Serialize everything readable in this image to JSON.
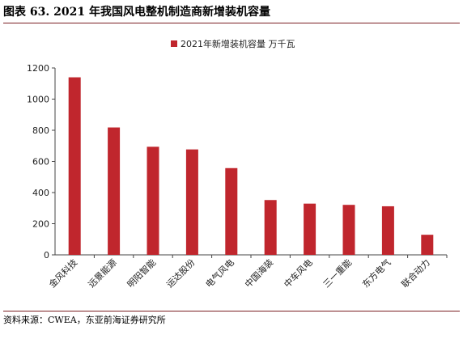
{
  "figure": {
    "title": "图表 63. 2021 年我国风电整机制造商新增装机容量",
    "source": "资料来源：CWEA，东亚前海证券研究所"
  },
  "colors": {
    "bar": "#c0262d",
    "accent_rule": "#7a1f22",
    "axis": "#444444"
  },
  "chart_data": {
    "type": "bar",
    "categories": [
      "金风科技",
      "远景能源",
      "明阳智能",
      "运达股份",
      "电气风电",
      "中国海装",
      "中车风电",
      "三一重能",
      "东方电气",
      "联合动力"
    ],
    "series": [
      {
        "name": "2021年新增装机容量 万千瓦",
        "values": [
          1140,
          818,
          694,
          677,
          557,
          352,
          329,
          321,
          312,
          129
        ]
      }
    ],
    "ylim": [
      0,
      1200
    ],
    "yticks": [
      "0",
      "200",
      "400",
      "600",
      "800",
      "1000",
      "1200"
    ],
    "xlabel": "",
    "ylabel": "",
    "grid": false,
    "legend_position": "top-center"
  }
}
